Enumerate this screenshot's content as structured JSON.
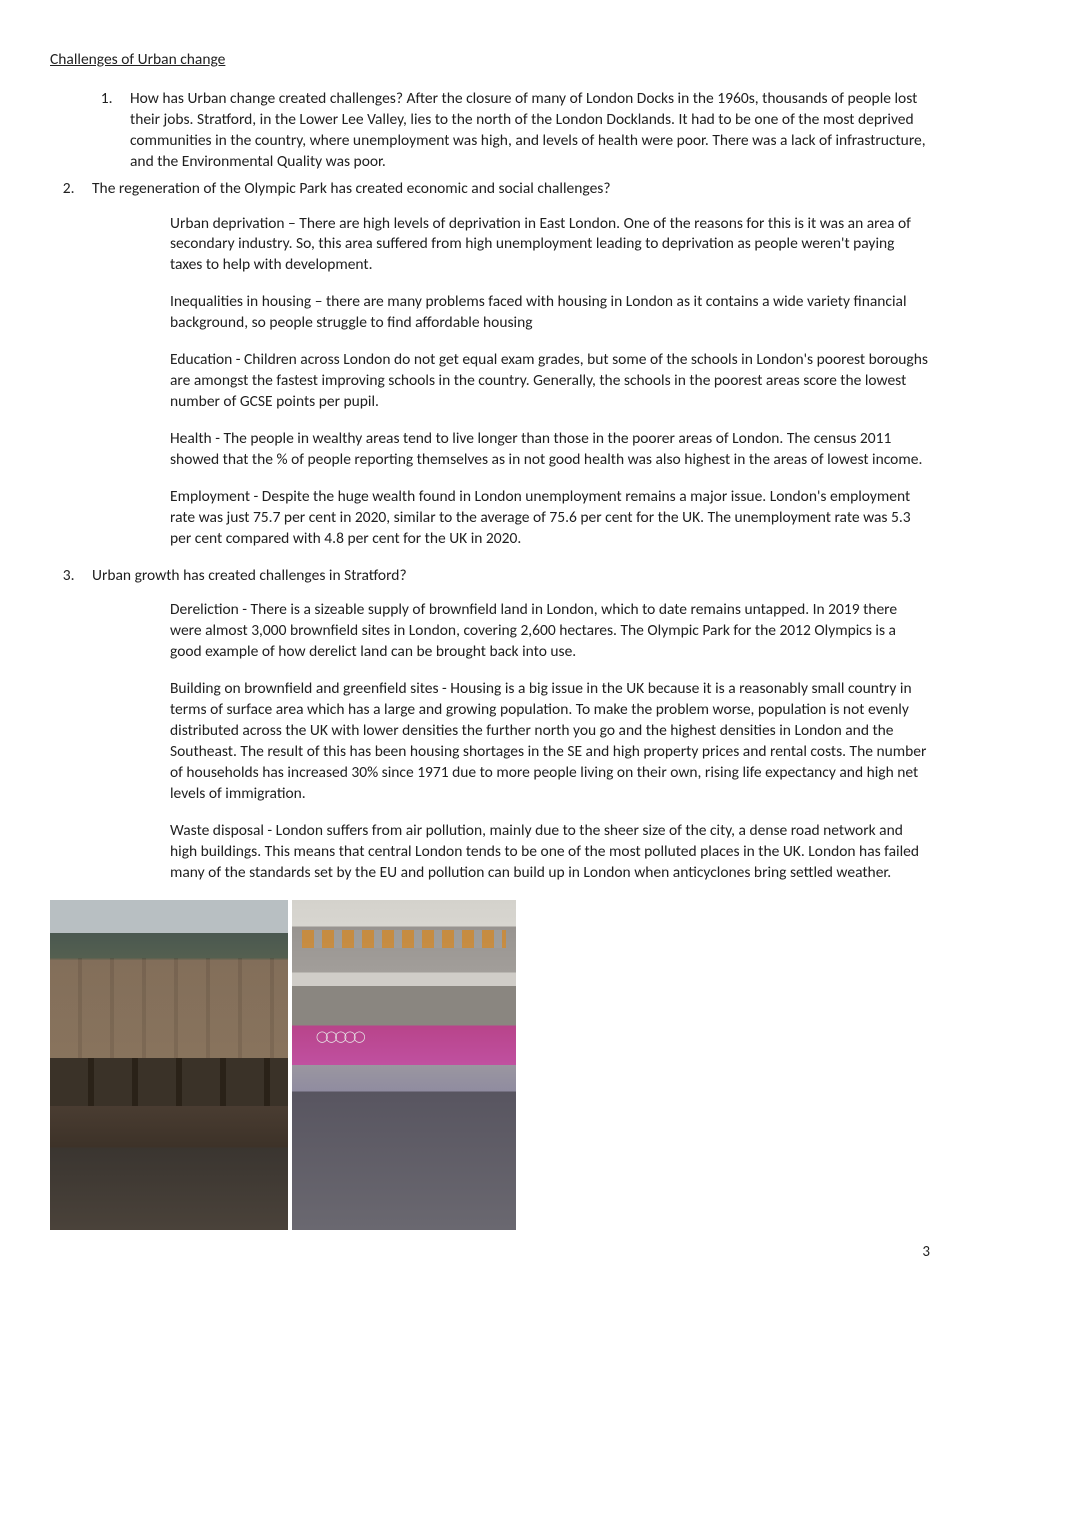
{
  "title": "Challenges of Urban change",
  "items": {
    "1": "How has Urban change created challenges? After the closure of many of London Docks in the 1960s, thousands of people lost their jobs. Stratford, in the Lower Lee Valley, lies to the north of the London Docklands. It had to be one of the most deprived communities in the country, where unemployment was high, and levels of health were poor. There was a lack of infrastructure, and the Environmental Quality was poor.",
    "2": "The regeneration of the Olympic Park has created economic and social challenges?",
    "3": "Urban growth has created challenges in Stratford?"
  },
  "section2": {
    "p1": "Urban deprivation – There are high levels of deprivation in East London. One of the reasons for this is it was an area of secondary industry. So, this area suffered from high unemployment leading to deprivation as people weren't paying taxes to help with development.",
    "p2": "Inequalities in housing – there are many problems faced with housing in London as it contains a wide variety financial background, so people struggle to find affordable housing",
    "p3": "Education - Children across London do not get equal exam grades, but some of the schools in London's poorest boroughs are amongst the fastest improving schools in the country.  Generally, the schools in the poorest areas score the lowest number of GCSE points per pupil.",
    "p4": "Health - The people in wealthy areas tend to live longer than those in the poorer areas of London.  The census 2011 showed that the % of people reporting themselves as in not good health was also highest in the areas of lowest income.",
    "p5": "Employment - Despite the huge wealth found in London unemployment remains a major issue. London's employment rate was just 75.7 per cent in 2020, similar to the average of 75.6 per cent for the UK. The unemployment rate was 5.3 per cent compared with 4.8 per cent for the UK in 2020."
  },
  "section3": {
    "p1": "Dereliction - There is a sizeable supply of brownfield land in London, which to date remains untapped. In 2019 there were almost 3,000 brownfield sites in London, covering 2,600 hectares. The Olympic Park for the 2012 Olympics is a good example of how derelict land can be brought back into use.",
    "p2": "Building on brownfield and greenfield sites - Housing is a big issue in the UK because it is a reasonably small country in terms of surface area which has a large and growing population. To make the problem worse, population is not evenly distributed across the UK with lower densities the further north you go and the highest densities in London and the Southeast.  The result of this has been housing shortages in the SE and high property prices and rental costs. The number of households has increased 30% since 1971 due to more people living on their own, rising life expectancy and high net levels of immigration.",
    "p3": "Waste disposal - London suffers from air pollution, mainly due to the sheer size of the city, a dense road network and high buildings.  This means that central London tends to be one of the most polluted places in the UK. London has failed many of the standards set by the EU and pollution can build up in London when anticyclones bring settled weather."
  },
  "pageNumber": "3",
  "images": {
    "left_desc": "derelict-brick-warehouse-waterfront",
    "right_desc": "olympic-park-modern-building"
  }
}
